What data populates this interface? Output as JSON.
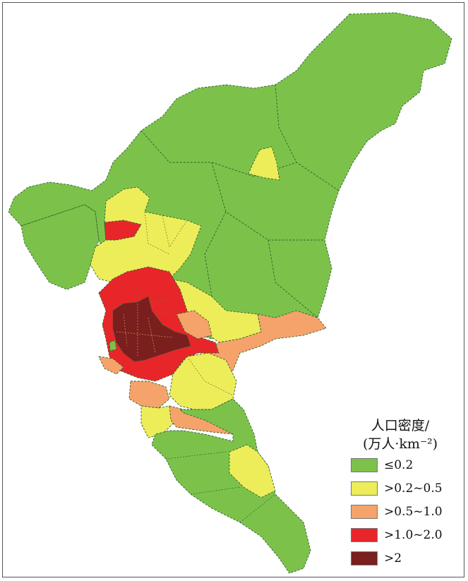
{
  "colors": {
    "density_le_0_2": "#7cc24a",
    "density_0_2_0_5": "#eded5a",
    "density_0_5_1_0": "#f5a36a",
    "density_1_0_2_0": "#e8262a",
    "density_gt_2": "#7a1e1e",
    "border": "#2f5f2f"
  },
  "legend": {
    "title_line1": "人口密度/",
    "title_line2": "(万人·km⁻²)",
    "items": [
      {
        "label": "≤0.2",
        "color": "#7cc24a"
      },
      {
        "label": ">0.2~0.5",
        "color": "#eded5a"
      },
      {
        "label": ">0.5~1.0",
        "color": "#f5a36a"
      },
      {
        "label": ">1.0~2.0",
        "color": "#e8262a"
      },
      {
        "label": ">2",
        "color": "#7a1e1e"
      }
    ]
  }
}
